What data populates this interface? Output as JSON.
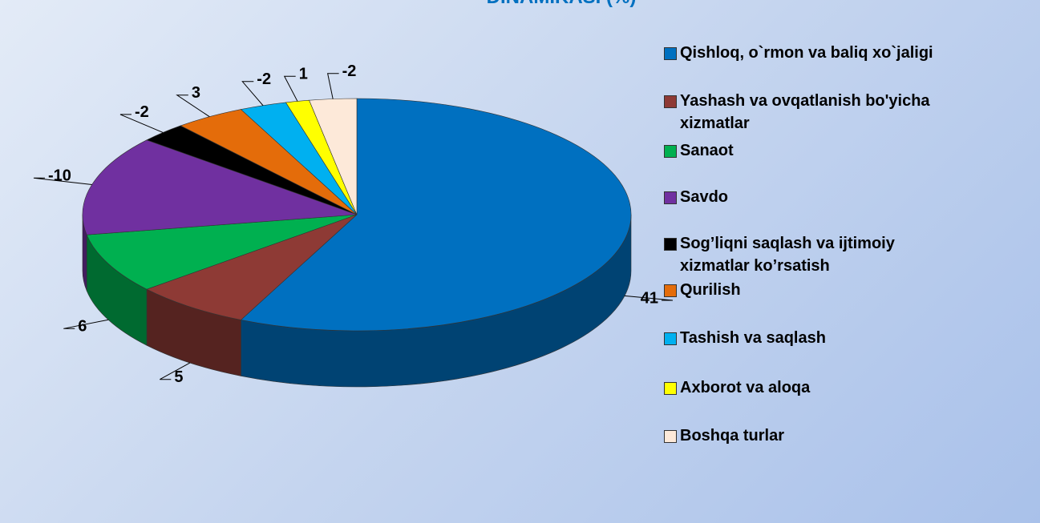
{
  "chart_data": {
    "type": "pie3d",
    "title": "DINAMIKASI (%)",
    "categories": [
      "Qishloq, o`rmon va baliq xo`jaligi",
      "Yashash va ovqatlanish bo'yicha xizmatlar",
      "Sanaot",
      "Savdo",
      "Sog’liqni saqlash va ijtimoiy xizmatlar ko’rsatish",
      "Qurilish",
      "Tashish va saqlash",
      "Axborot va aloqa",
      "Boshqa  turlar"
    ],
    "values": [
      41,
      5,
      6,
      -10,
      -2,
      3,
      -2,
      1,
      -2
    ],
    "colors": [
      "#0070c0",
      "#8e3a35",
      "#00b050",
      "#7030a0",
      "#000000",
      "#e46c0a",
      "#00b0f0",
      "#ffff00",
      "#fde9d9"
    ],
    "legend": "right"
  }
}
